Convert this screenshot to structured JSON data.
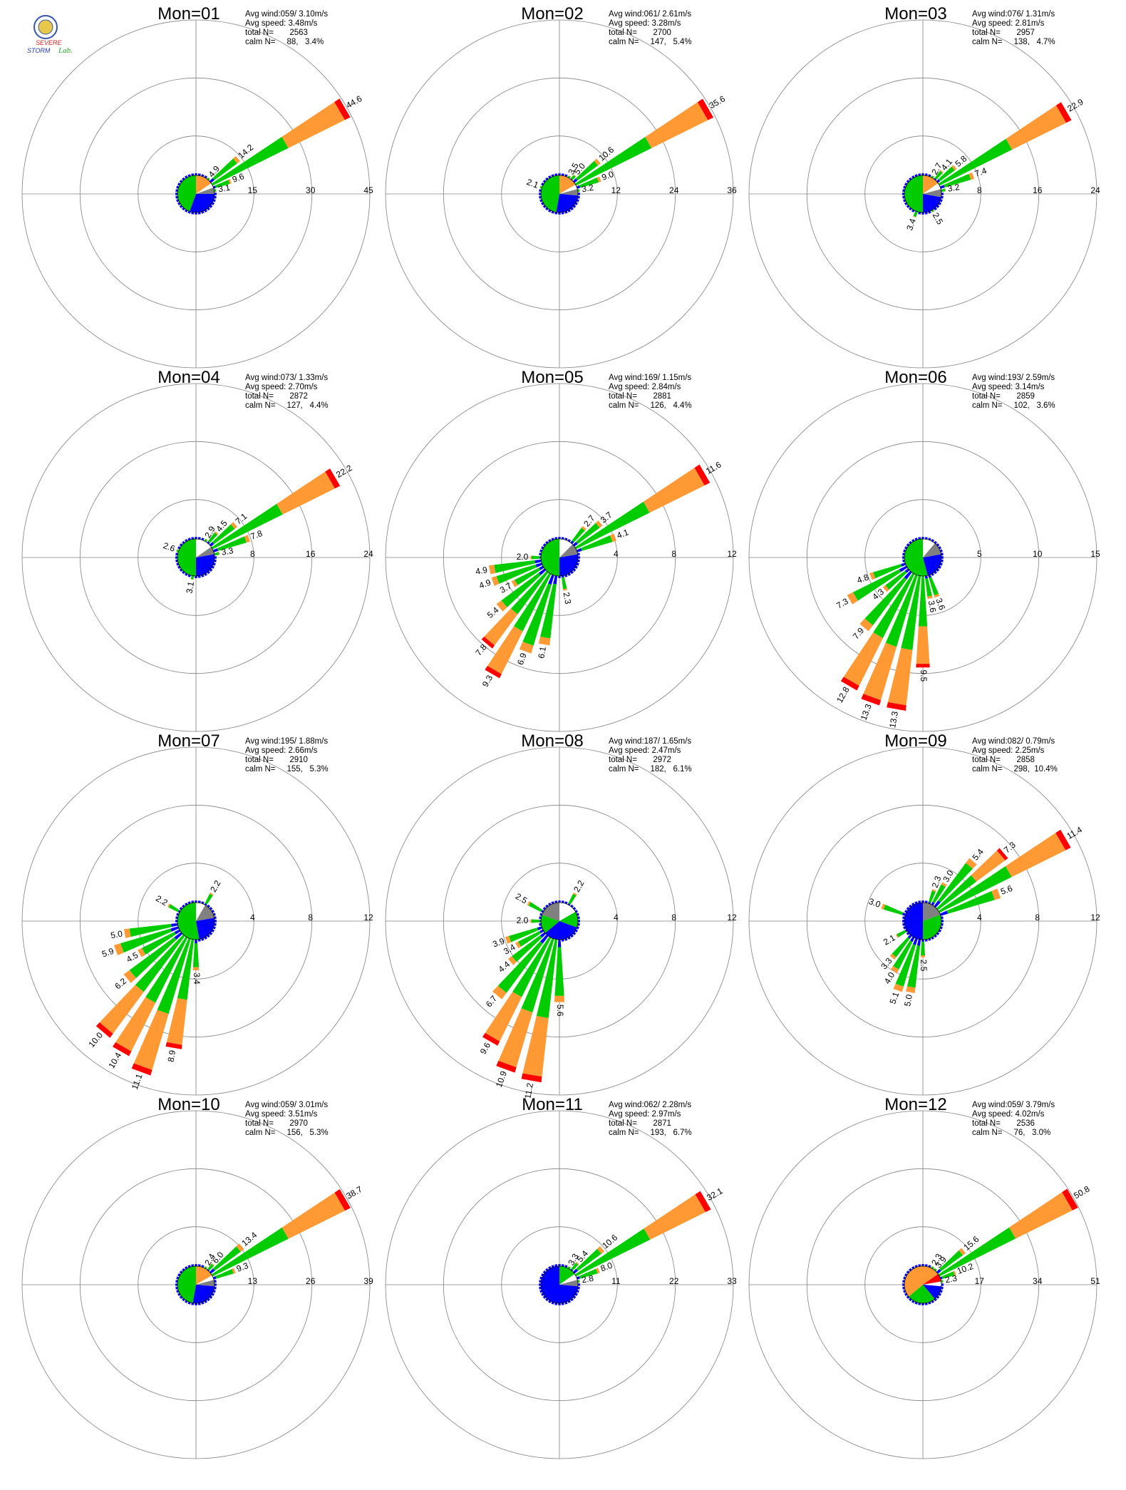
{
  "colors": {
    "speed_bins": [
      "#0000ff",
      "#00cc00",
      "#ff9933",
      "#ff0000"
    ],
    "calm_sector": "#808080",
    "grid": "#808080"
  },
  "logo": {
    "line1": "SEVERE",
    "line2": "STORM",
    "line3": "Lab.",
    "icon": "university-seal-icon"
  },
  "chart_data": [
    {
      "type": "wind-rose",
      "title": "Mon=01",
      "rings": [
        15,
        30,
        45
      ],
      "stats": {
        "avg_wind": "Avg wind:059/ 3.10m/s",
        "avg_speed": "Avg speed: 3.48m/s",
        "total_label": "total N=",
        "total": "2563",
        "calm_label": "calm N=",
        "calm": "88,   3.4%"
      },
      "labeled_bars": [
        {
          "dir": 60,
          "value": 44.6
        },
        {
          "dir": 50,
          "value": 14.2
        },
        {
          "dir": 70,
          "value": 9.6
        },
        {
          "dir": 80,
          "value": 3.1
        },
        {
          "dir": 40,
          "value": 4.9
        }
      ],
      "inner_sectors": [
        {
          "from": 0,
          "to": 55,
          "color": "#ff9933"
        },
        {
          "from": 55,
          "to": 70,
          "color": "#ffffff"
        },
        {
          "from": 70,
          "to": 90,
          "color": "#808080"
        },
        {
          "from": 90,
          "to": 200,
          "color": "#0000ff"
        },
        {
          "from": 200,
          "to": 360,
          "color": "#00cc00"
        }
      ],
      "inner_r": 0.8
    },
    {
      "type": "wind-rose",
      "title": "Mon=02",
      "rings": [
        12,
        24,
        36
      ],
      "stats": {
        "avg_wind": "Avg wind:061/ 2.61m/s",
        "avg_speed": "Avg speed: 3.28m/s",
        "total_label": "total N=",
        "total": "2700",
        "calm_label": "calm N=",
        "calm": "147,   5.4%"
      },
      "labeled_bars": [
        {
          "dir": 60,
          "value": 35.6
        },
        {
          "dir": 50,
          "value": 10.6
        },
        {
          "dir": 70,
          "value": 9.0
        },
        {
          "dir": 80,
          "value": 3.2
        },
        {
          "dir": 40,
          "value": 5.0
        },
        {
          "dir": 30,
          "value": 3.5
        },
        {
          "dir": 290,
          "value": 2.1
        }
      ],
      "inner_sectors": [
        {
          "from": 0,
          "to": 60,
          "color": "#ff9933"
        },
        {
          "from": 60,
          "to": 75,
          "color": "#ffffff"
        },
        {
          "from": 75,
          "to": 95,
          "color": "#808080"
        },
        {
          "from": 95,
          "to": 190,
          "color": "#0000ff"
        },
        {
          "from": 190,
          "to": 360,
          "color": "#00cc00"
        }
      ],
      "inner_r": 0.9
    },
    {
      "type": "wind-rose",
      "title": "Mon=03",
      "rings": [
        8,
        16,
        24
      ],
      "stats": {
        "avg_wind": "Avg wind:076/ 1.31m/s",
        "avg_speed": "Avg speed: 2.81m/s",
        "total_label": "total N=",
        "total": "2957",
        "calm_label": "calm N=",
        "calm": "138,   4.7%"
      },
      "labeled_bars": [
        {
          "dir": 60,
          "value": 22.9
        },
        {
          "dir": 70,
          "value": 7.4
        },
        {
          "dir": 50,
          "value": 5.8
        },
        {
          "dir": 40,
          "value": 4.1
        },
        {
          "dir": 30,
          "value": 2.7
        },
        {
          "dir": 80,
          "value": 3.2
        },
        {
          "dir": 200,
          "value": 3.4
        },
        {
          "dir": 150,
          "value": 2.5
        }
      ],
      "inner_sectors": [
        {
          "from": 0,
          "to": 55,
          "color": "#ff9933"
        },
        {
          "from": 55,
          "to": 75,
          "color": "#ffffff"
        },
        {
          "from": 75,
          "to": 100,
          "color": "#808080"
        },
        {
          "from": 100,
          "to": 180,
          "color": "#0000ff"
        },
        {
          "from": 180,
          "to": 360,
          "color": "#00cc00"
        }
      ],
      "inner_r": 1.25
    },
    {
      "type": "wind-rose",
      "title": "Mon=04",
      "rings": [
        8,
        16,
        24
      ],
      "stats": {
        "avg_wind": "Avg wind:073/ 1.33m/s",
        "avg_speed": "Avg speed: 2.70m/s",
        "total_label": "total N=",
        "total": "2872",
        "calm_label": "calm N=",
        "calm": "127,   4.4%"
      },
      "labeled_bars": [
        {
          "dir": 60,
          "value": 22.2
        },
        {
          "dir": 50,
          "value": 7.1
        },
        {
          "dir": 70,
          "value": 7.8
        },
        {
          "dir": 40,
          "value": 4.5
        },
        {
          "dir": 30,
          "value": 2.9
        },
        {
          "dir": 80,
          "value": 3.3
        },
        {
          "dir": 290,
          "value": 2.6
        },
        {
          "dir": 190,
          "value": 3.1
        }
      ],
      "inner_sectors": [
        {
          "from": 0,
          "to": 55,
          "color": "#ffffff"
        },
        {
          "from": 55,
          "to": 80,
          "color": "#808080"
        },
        {
          "from": 80,
          "to": 180,
          "color": "#0000ff"
        },
        {
          "from": 180,
          "to": 360,
          "color": "#00cc00"
        }
      ],
      "inner_r": 1.3
    },
    {
      "type": "wind-rose",
      "title": "Mon=05",
      "rings": [
        4,
        8,
        12
      ],
      "stats": {
        "avg_wind": "Avg wind:169/ 1.15m/s",
        "avg_speed": "Avg speed: 2.84m/s",
        "total_label": "total N=",
        "total": "2881",
        "calm_label": "calm N=",
        "calm": "126,   4.4%"
      },
      "labeled_bars": [
        {
          "dir": 60,
          "value": 11.6
        },
        {
          "dir": 50,
          "value": 3.7
        },
        {
          "dir": 40,
          "value": 2.7
        },
        {
          "dir": 70,
          "value": 4.1
        },
        {
          "dir": 210,
          "value": 9.3
        },
        {
          "dir": 220,
          "value": 7.8
        },
        {
          "dir": 200,
          "value": 6.9
        },
        {
          "dir": 190,
          "value": 6.1
        },
        {
          "dir": 230,
          "value": 5.4
        },
        {
          "dir": 240,
          "value": 3.7
        },
        {
          "dir": 250,
          "value": 4.9
        },
        {
          "dir": 260,
          "value": 4.9
        },
        {
          "dir": 270,
          "value": 2.0
        },
        {
          "dir": 170,
          "value": 2.3
        }
      ],
      "inner_sectors": [
        {
          "from": 0,
          "to": 45,
          "color": "#ffffff"
        },
        {
          "from": 45,
          "to": 80,
          "color": "#808080"
        },
        {
          "from": 80,
          "to": 180,
          "color": "#0000ff"
        },
        {
          "from": 180,
          "to": 360,
          "color": "#00cc00"
        }
      ],
      "inner_r": 0.55
    },
    {
      "type": "wind-rose",
      "title": "Mon=06",
      "rings": [
        5,
        10,
        15
      ],
      "stats": {
        "avg_wind": "Avg wind:193/ 2.59m/s",
        "avg_speed": "Avg speed: 3.14m/s",
        "total_label": "total N=",
        "total": "2859",
        "calm_label": "calm N=",
        "calm": "102,   3.6%"
      },
      "labeled_bars": [
        {
          "dir": 190,
          "value": 13.3
        },
        {
          "dir": 200,
          "value": 13.3
        },
        {
          "dir": 210,
          "value": 12.8
        },
        {
          "dir": 220,
          "value": 7.9
        },
        {
          "dir": 230,
          "value": 4.3
        },
        {
          "dir": 240,
          "value": 7.3
        },
        {
          "dir": 250,
          "value": 4.8
        },
        {
          "dir": 180,
          "value": 9.5
        },
        {
          "dir": 170,
          "value": 3.6
        },
        {
          "dir": 160,
          "value": 3.6
        }
      ],
      "inner_sectors": [
        {
          "from": 0,
          "to": 40,
          "color": "#ffffff"
        },
        {
          "from": 40,
          "to": 80,
          "color": "#808080"
        },
        {
          "from": 80,
          "to": 165,
          "color": "#0000ff"
        },
        {
          "from": 165,
          "to": 360,
          "color": "#00cc00"
        }
      ],
      "inner_r": 0.7
    },
    {
      "type": "wind-rose",
      "title": "Mon=07",
      "rings": [
        4,
        8,
        12
      ],
      "stats": {
        "avg_wind": "Avg wind:195/ 1.88m/s",
        "avg_speed": "Avg speed: 2.66m/s",
        "total_label": "total N=",
        "total": "2910",
        "calm_label": "calm N=",
        "calm": "155,   5.3%"
      },
      "labeled_bars": [
        {
          "dir": 200,
          "value": 11.1
        },
        {
          "dir": 210,
          "value": 10.4
        },
        {
          "dir": 220,
          "value": 10.0
        },
        {
          "dir": 190,
          "value": 8.9
        },
        {
          "dir": 230,
          "value": 6.2
        },
        {
          "dir": 240,
          "value": 4.5
        },
        {
          "dir": 250,
          "value": 5.9
        },
        {
          "dir": 260,
          "value": 5.0
        },
        {
          "dir": 180,
          "value": 3.4
        },
        {
          "dir": 30,
          "value": 2.2
        },
        {
          "dir": 300,
          "value": 2.2
        }
      ],
      "inner_sectors": [
        {
          "from": 0,
          "to": 30,
          "color": "#ffffff"
        },
        {
          "from": 30,
          "to": 80,
          "color": "#808080"
        },
        {
          "from": 80,
          "to": 170,
          "color": "#0000ff"
        },
        {
          "from": 170,
          "to": 360,
          "color": "#00cc00"
        }
      ],
      "inner_r": 0.75
    },
    {
      "type": "wind-rose",
      "title": "Mon=08",
      "rings": [
        4,
        8,
        12
      ],
      "stats": {
        "avg_wind": "Avg wind:187/ 1.65m/s",
        "avg_speed": "Avg speed: 2.47m/s",
        "total_label": "total N=",
        "total": "2972",
        "calm_label": "calm N=",
        "calm": "182,   6.1%"
      },
      "labeled_bars": [
        {
          "dir": 200,
          "value": 10.9
        },
        {
          "dir": 190,
          "value": 11.2
        },
        {
          "dir": 210,
          "value": 9.6
        },
        {
          "dir": 220,
          "value": 6.7
        },
        {
          "dir": 230,
          "value": 4.4
        },
        {
          "dir": 240,
          "value": 3.4
        },
        {
          "dir": 250,
          "value": 3.9
        },
        {
          "dir": 270,
          "value": 2.0
        },
        {
          "dir": 180,
          "value": 5.6
        },
        {
          "dir": 30,
          "value": 2.2
        },
        {
          "dir": 300,
          "value": 2.5
        }
      ],
      "inner_sectors": [
        {
          "from": 0,
          "to": 60,
          "color": "#ffffff"
        },
        {
          "from": 60,
          "to": 110,
          "color": "#00cc00"
        },
        {
          "from": 110,
          "to": 230,
          "color": "#0000ff"
        },
        {
          "from": 230,
          "to": 290,
          "color": "#00cc00"
        },
        {
          "from": 290,
          "to": 360,
          "color": "#808080"
        }
      ],
      "inner_r": 0.8
    },
    {
      "type": "wind-rose",
      "title": "Mon=09",
      "rings": [
        4,
        8,
        12
      ],
      "stats": {
        "avg_wind": "Avg wind:082/ 0.79m/s",
        "avg_speed": "Avg speed: 2.25m/s",
        "total_label": "total N=",
        "total": "2858",
        "calm_label": "calm N=",
        "calm": "298,  10.4%"
      },
      "labeled_bars": [
        {
          "dir": 60,
          "value": 11.4
        },
        {
          "dir": 50,
          "value": 7.3
        },
        {
          "dir": 40,
          "value": 5.4
        },
        {
          "dir": 70,
          "value": 5.6
        },
        {
          "dir": 30,
          "value": 3.0
        },
        {
          "dir": 20,
          "value": 2.3
        },
        {
          "dir": 200,
          "value": 5.1
        },
        {
          "dir": 190,
          "value": 5.0
        },
        {
          "dir": 210,
          "value": 4.0
        },
        {
          "dir": 220,
          "value": 3.3
        },
        {
          "dir": 180,
          "value": 2.5
        },
        {
          "dir": 240,
          "value": 2.1
        },
        {
          "dir": 290,
          "value": 3.0
        }
      ],
      "inner_sectors": [
        {
          "from": 0,
          "to": 70,
          "color": "#808080"
        },
        {
          "from": 70,
          "to": 180,
          "color": "#00cc00"
        },
        {
          "from": 180,
          "to": 360,
          "color": "#0000ff"
        }
      ],
      "inner_r": 0.9
    },
    {
      "type": "wind-rose",
      "title": "Mon=10",
      "rings": [
        13,
        26,
        39
      ],
      "stats": {
        "avg_wind": "Avg wind:059/ 3.01m/s",
        "avg_speed": "Avg speed: 3.51m/s",
        "total_label": "total N=",
        "total": "2970",
        "calm_label": "calm N=",
        "calm": "156,   5.3%"
      },
      "labeled_bars": [
        {
          "dir": 60,
          "value": 38.7
        },
        {
          "dir": 50,
          "value": 13.4
        },
        {
          "dir": 70,
          "value": 9.3
        },
        {
          "dir": 40,
          "value": 6.0
        },
        {
          "dir": 30,
          "value": 2.4
        }
      ],
      "inner_sectors": [
        {
          "from": 0,
          "to": 60,
          "color": "#ff9933"
        },
        {
          "from": 60,
          "to": 75,
          "color": "#ffffff"
        },
        {
          "from": 75,
          "to": 95,
          "color": "#808080"
        },
        {
          "from": 95,
          "to": 190,
          "color": "#0000ff"
        },
        {
          "from": 190,
          "to": 360,
          "color": "#00cc00"
        }
      ],
      "inner_r": 0.8
    },
    {
      "type": "wind-rose",
      "title": "Mon=11",
      "rings": [
        11,
        22,
        33
      ],
      "stats": {
        "avg_wind": "Avg wind:062/ 2.28m/s",
        "avg_speed": "Avg speed: 2.97m/s",
        "total_label": "total N=",
        "total": "2871",
        "calm_label": "calm N=",
        "calm": "193,   6.7%"
      },
      "labeled_bars": [
        {
          "dir": 60,
          "value": 32.1
        },
        {
          "dir": 50,
          "value": 10.6
        },
        {
          "dir": 70,
          "value": 8.0
        },
        {
          "dir": 80,
          "value": 2.8
        },
        {
          "dir": 40,
          "value": 5.4
        },
        {
          "dir": 30,
          "value": 3.3
        }
      ],
      "inner_sectors": [
        {
          "from": 0,
          "to": 55,
          "color": "#00cc00"
        },
        {
          "from": 55,
          "to": 75,
          "color": "#ffffff"
        },
        {
          "from": 75,
          "to": 95,
          "color": "#808080"
        },
        {
          "from": 95,
          "to": 360,
          "color": "#0000ff"
        }
      ],
      "inner_r": 0.85
    },
    {
      "type": "wind-rose",
      "title": "Mon=12",
      "rings": [
        17,
        34,
        51
      ],
      "stats": {
        "avg_wind": "Avg wind:059/ 3.79m/s",
        "avg_speed": "Avg speed: 4.02m/s",
        "total_label": "total N=",
        "total": "2536",
        "calm_label": "calm N=",
        "calm": "76,   3.0%"
      },
      "labeled_bars": [
        {
          "dir": 60,
          "value": 50.8
        },
        {
          "dir": 50,
          "value": 15.6
        },
        {
          "dir": 70,
          "value": 10.2
        },
        {
          "dir": 80,
          "value": 2.3
        },
        {
          "dir": 40,
          "value": 3.9
        },
        {
          "dir": 30,
          "value": 2.3
        }
      ],
      "inner_sectors": [
        {
          "from": 0,
          "to": 55,
          "color": "#ff9933"
        },
        {
          "from": 55,
          "to": 80,
          "color": "#ff0000"
        },
        {
          "from": 80,
          "to": 95,
          "color": "#ffffff"
        },
        {
          "from": 95,
          "to": 140,
          "color": "#0000ff"
        },
        {
          "from": 140,
          "to": 230,
          "color": "#00cc00"
        },
        {
          "from": 230,
          "to": 360,
          "color": "#ff9933"
        }
      ],
      "inner_r": 0.8
    }
  ]
}
